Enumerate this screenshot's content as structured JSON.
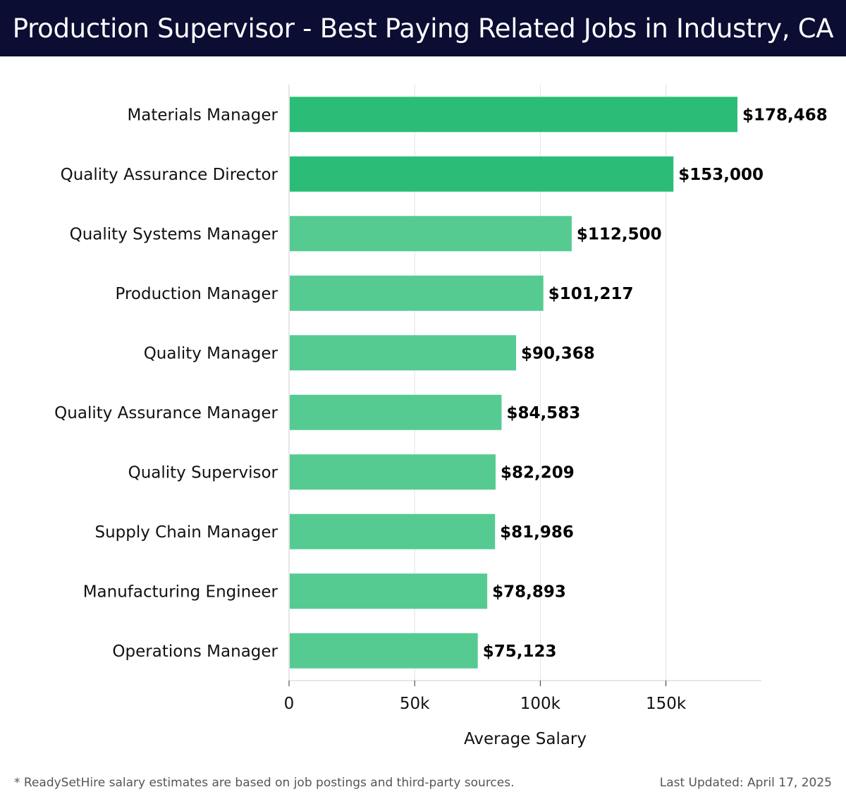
{
  "header": {
    "title": "Production Supervisor - Best Paying Related Jobs in Industry, CA"
  },
  "chart_data": {
    "type": "bar",
    "orientation": "horizontal",
    "title": "Production Supervisor - Best Paying Related Jobs in Industry, CA",
    "xlabel": "Average Salary",
    "ylabel": "",
    "categories": [
      "Materials Manager",
      "Quality Assurance Director",
      "Quality Systems Manager",
      "Production Manager",
      "Quality Manager",
      "Quality Assurance Manager",
      "Quality Supervisor",
      "Supply Chain Manager",
      "Manufacturing Engineer",
      "Operations Manager"
    ],
    "values": [
      178468,
      153000,
      112500,
      101217,
      90368,
      84583,
      82209,
      81986,
      78893,
      75123
    ],
    "value_labels": [
      "$178,468",
      "$153,000",
      "$112,500",
      "$101,217",
      "$90,368",
      "$84,583",
      "$82,209",
      "$81,986",
      "$78,893",
      "$75,123"
    ],
    "xlim": [
      0,
      188000
    ],
    "xticks": [
      0,
      50000,
      100000,
      150000
    ],
    "xtick_labels": [
      "0",
      "50k",
      "100k",
      "150k"
    ],
    "grid": "vertical",
    "legend": "none",
    "colors": {
      "top": "#2bbd77",
      "rest": "#55cb92"
    }
  },
  "footer": {
    "note": "* ReadySetHire salary estimates are based on job postings and third-party sources.",
    "updated": "Last Updated: April 17, 2025"
  },
  "colors": {
    "header_bg": "#0b0d33",
    "header_text": "#ffffff"
  }
}
